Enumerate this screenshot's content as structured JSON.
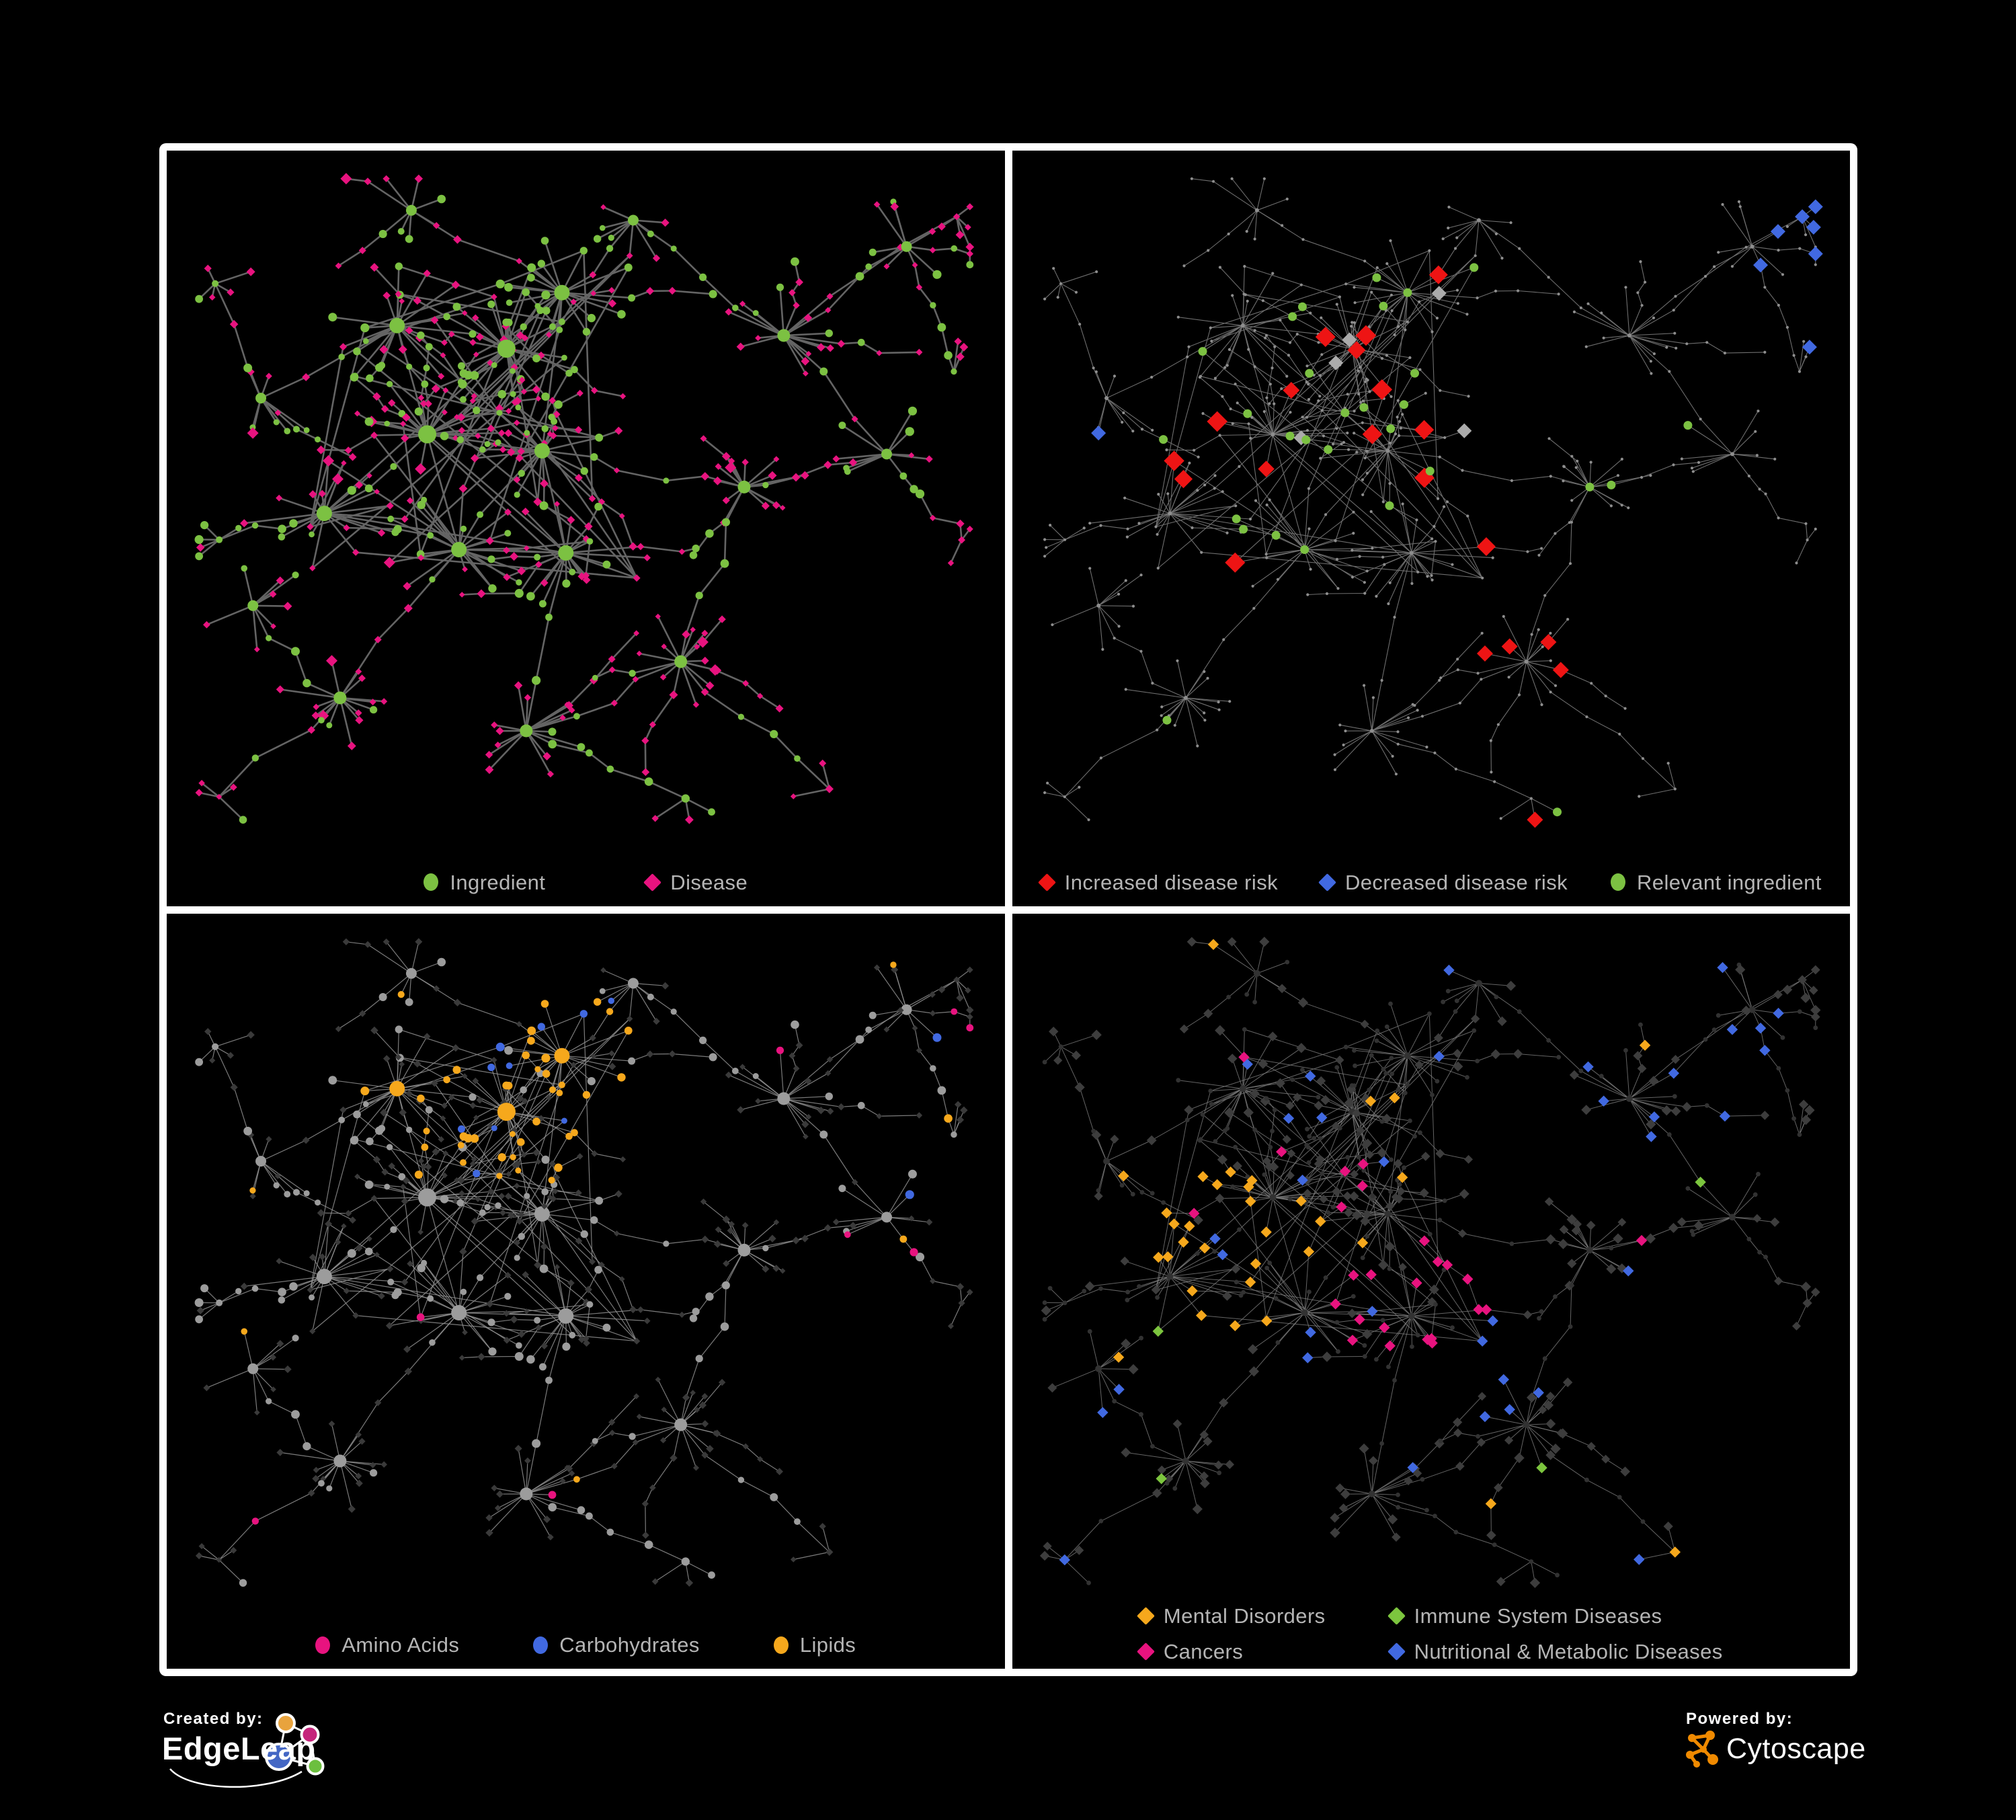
{
  "page": {
    "background": "#000000",
    "frame_color": "#ffffff"
  },
  "legend_text_color": "#B5B5B5",
  "panels": [
    {
      "id": "ingredient-disease",
      "legend": [
        {
          "label": "Ingredient",
          "shape": "circle",
          "color": "#7CC142"
        },
        {
          "label": "Disease",
          "shape": "diamond",
          "color": "#E8137F"
        }
      ]
    },
    {
      "id": "disease-risk",
      "legend": [
        {
          "label": "Increased disease risk",
          "shape": "diamond",
          "color": "#EE1414"
        },
        {
          "label": "Decreased disease risk",
          "shape": "diamond",
          "color": "#4169E1"
        },
        {
          "label": "Relevant ingredient",
          "shape": "circle",
          "color": "#7CC142"
        }
      ]
    },
    {
      "id": "nutrient-classes",
      "legend": [
        {
          "label": "Amino Acids",
          "shape": "circle",
          "color": "#E8137F"
        },
        {
          "label": "Carbohydrates",
          "shape": "circle",
          "color": "#4169E1"
        },
        {
          "label": "Lipids",
          "shape": "circle",
          "color": "#F6A81C"
        }
      ]
    },
    {
      "id": "disease-classes",
      "legend": [
        {
          "label": "Mental Disorders",
          "shape": "diamond",
          "color": "#F6A81C"
        },
        {
          "label": "Immune System Diseases",
          "shape": "diamond",
          "color": "#7CC53E"
        },
        {
          "label": "Cancers",
          "shape": "diamond",
          "color": "#E8137F"
        },
        {
          "label": "Nutritional & Metabolic Diseases",
          "shape": "diamond",
          "color": "#4169E1"
        }
      ]
    }
  ],
  "network_style": {
    "panel1": {
      "edge": {
        "stroke": "#646464",
        "width": 2.6,
        "opacity": 1
      },
      "ingredient": "#7CC142",
      "disease": "#E8137F"
    },
    "panel2": {
      "edge": {
        "stroke": "#6E6E6E",
        "width": 1.1,
        "opacity": 1
      },
      "base": "#8E8E8E",
      "increased": "#EE1414",
      "decreased": "#4169E1",
      "uncertain": "#ABABAB",
      "relevant": "#7CC142"
    },
    "panel3": {
      "edge": {
        "stroke": "#909090",
        "width": 1.2,
        "opacity": 0.85
      },
      "ingredient_base": "#9C9C9C",
      "disease_base": "#3A3A3A",
      "amino": "#E8137F",
      "carb": "#4169E1",
      "lipid": "#F6A81C"
    },
    "panel4": {
      "edge": {
        "stroke": "#7D7D7D",
        "width": 1.0,
        "opacity": 0.8
      },
      "disease_base": "#3D3D3D",
      "ingredient_base": "#323232",
      "mental": "#F6A81C",
      "immune": "#7CC53E",
      "cancer": "#E8137F",
      "metabolic": "#4169E1"
    }
  },
  "footer": {
    "created_by": {
      "label": "Created by:",
      "brand": "EdgeLeap",
      "logo_colors": {
        "orange": "#E8A33D",
        "pink": "#C5247B",
        "blue": "#4467C4",
        "green": "#6CBF3F"
      }
    },
    "powered_by": {
      "label": "Powered by:",
      "brand": "Cytoscape",
      "logo_color": "#F08A00"
    }
  }
}
